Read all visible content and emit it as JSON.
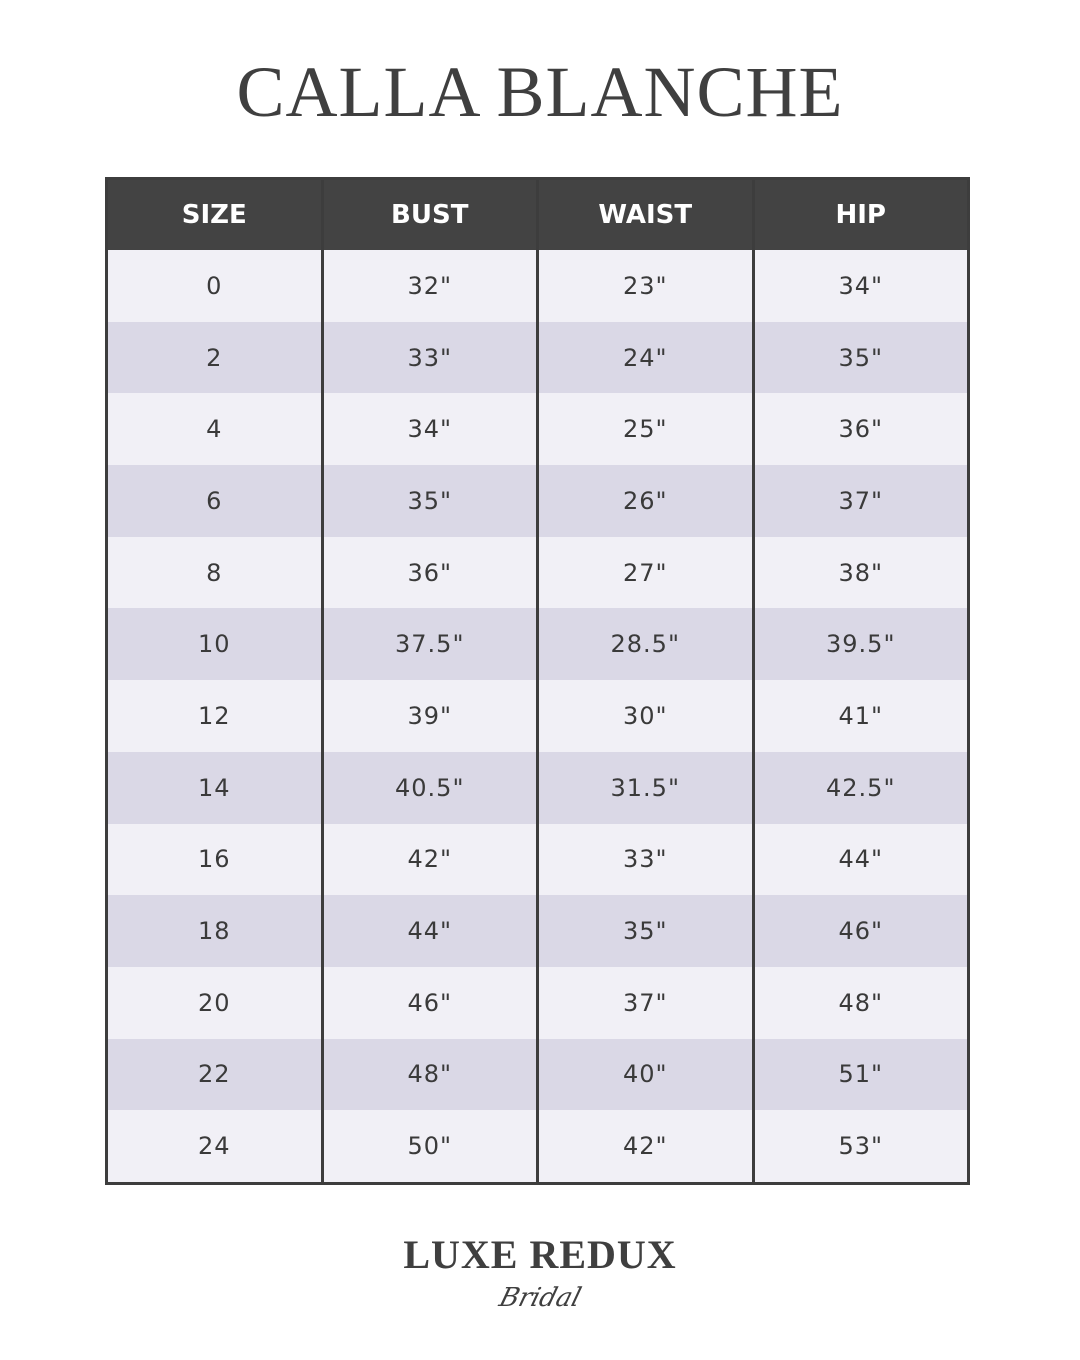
{
  "title": "CALLA BLANCHE",
  "table": {
    "headers": [
      "SIZE",
      "BUST",
      "WAIST",
      "HIP"
    ],
    "rows": [
      [
        "0",
        "32\"",
        "23\"",
        "34\""
      ],
      [
        "2",
        "33\"",
        "24\"",
        "35\""
      ],
      [
        "4",
        "34\"",
        "25\"",
        "36\""
      ],
      [
        "6",
        "35\"",
        "26\"",
        "37\""
      ],
      [
        "8",
        "36\"",
        "27\"",
        "38\""
      ],
      [
        "10",
        "37.5\"",
        "28.5\"",
        "39.5\""
      ],
      [
        "12",
        "39\"",
        "30\"",
        "41\""
      ],
      [
        "14",
        "40.5\"",
        "31.5\"",
        "42.5\""
      ],
      [
        "16",
        "42\"",
        "33\"",
        "44\""
      ],
      [
        "18",
        "44\"",
        "35\"",
        "46\""
      ],
      [
        "20",
        "46\"",
        "37\"",
        "48\""
      ],
      [
        "22",
        "48\"",
        "40\"",
        "51\""
      ],
      [
        "24",
        "50\"",
        "42\"",
        "53\""
      ]
    ]
  },
  "logo": {
    "main": "LUXE REDUX",
    "sub": "Bridal"
  },
  "colors": {
    "header": "#434343",
    "row_light": "#f1f0f6",
    "row_dark": "#dad8e6",
    "text": "#3a3a3a"
  }
}
